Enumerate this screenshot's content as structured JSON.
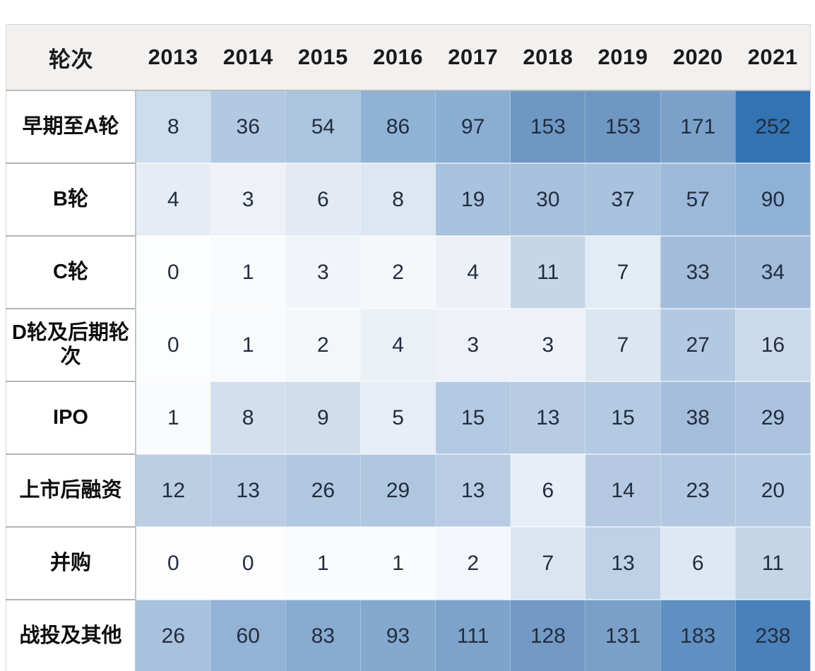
{
  "chart_data": {
    "type": "heatmap",
    "title": "",
    "corner_label": "轮次",
    "xlabel": "",
    "ylabel": "",
    "legend": "none",
    "palette": {
      "low": "#ffffff",
      "high": "#3273b4"
    },
    "categories": [
      "2013",
      "2014",
      "2015",
      "2016",
      "2017",
      "2018",
      "2019",
      "2020",
      "2021"
    ],
    "series": [
      {
        "name": "早期至A轮",
        "values": [
          8,
          36,
          54,
          86,
          97,
          153,
          153,
          171,
          252
        ],
        "cell_colors": [
          "#cedded",
          "#b2c9e1",
          "#abc5de",
          "#90b2d4",
          "#89aed1",
          "#6e97c3",
          "#6e97c3",
          "#7ba1ca",
          "#3273b4"
        ]
      },
      {
        "name": "B轮",
        "values": [
          4,
          3,
          6,
          8,
          19,
          30,
          37,
          57,
          90
        ],
        "cell_colors": [
          "#e6ecf4",
          "#eef2f8",
          "#e3eaf3",
          "#dde7f1",
          "#a9c2de",
          "#a7c0dd",
          "#a9c2de",
          "#9cb9da",
          "#8fb1d5"
        ]
      },
      {
        "name": "C轮",
        "values": [
          0,
          1,
          3,
          2,
          4,
          11,
          7,
          33,
          34
        ],
        "cell_colors": [
          "#fcfdfe",
          "#fafbfd",
          "#f1f5f9",
          "#f5f7fb",
          "#edf1f7",
          "#c6d5e8",
          "#e3ebf4",
          "#a3bcda",
          "#a3bcda"
        ]
      },
      {
        "name": "D轮及后期轮次",
        "values": [
          0,
          1,
          2,
          4,
          3,
          3,
          7,
          27,
          16
        ],
        "cell_colors": [
          "#fcfdfe",
          "#f9fafc",
          "#f4f6fa",
          "#ebf0f6",
          "#eef2f8",
          "#eef2f8",
          "#dce6f1",
          "#b3c9e2",
          "#cbdaea"
        ]
      },
      {
        "name": "IPO",
        "values": [
          1,
          8,
          9,
          5,
          15,
          13,
          15,
          38,
          29
        ],
        "cell_colors": [
          "#fafbfd",
          "#d2dfed",
          "#cfddec",
          "#e7edf5",
          "#b4cae2",
          "#b7cce3",
          "#b4cae2",
          "#a4bddb",
          "#abc3df"
        ]
      },
      {
        "name": "上市后融资",
        "values": [
          12,
          13,
          26,
          29,
          13,
          6,
          14,
          23,
          20
        ],
        "cell_colors": [
          "#bbcee4",
          "#b8cce3",
          "#b1c8e0",
          "#afc6df",
          "#b8cce3",
          "#e8eef6",
          "#b5cae2",
          "#b1c8e0",
          "#b4cae2"
        ]
      },
      {
        "name": "并购",
        "values": [
          0,
          0,
          1,
          1,
          2,
          7,
          13,
          6,
          11
        ],
        "cell_colors": [
          "#fdfdfe",
          "#fdfdfe",
          "#fafbfd",
          "#fafbfd",
          "#f3f6fa",
          "#dbe5f0",
          "#bed1e6",
          "#dfe8f2",
          "#c4d5e8"
        ]
      },
      {
        "name": "战投及其他",
        "values": [
          26,
          60,
          83,
          93,
          111,
          128,
          131,
          183,
          238
        ],
        "cell_colors": [
          "#a8c1dd",
          "#93b2d4",
          "#88abd0",
          "#84a8ce",
          "#7da3cb",
          "#7399c5",
          "#7aa0c9",
          "#6090c1",
          "#4a81ba"
        ]
      }
    ]
  },
  "style_colors": {
    "page_background": "#ffffff",
    "header_background": "#f2f1f0",
    "header_text": "#1a1a1a",
    "row_label_background": "#ffffff",
    "row_label_text": "#0e0e0e",
    "value_text": "#222d3f",
    "grid_line": "#b3b3b3",
    "table_bottom_border": "#8e8e8e"
  }
}
